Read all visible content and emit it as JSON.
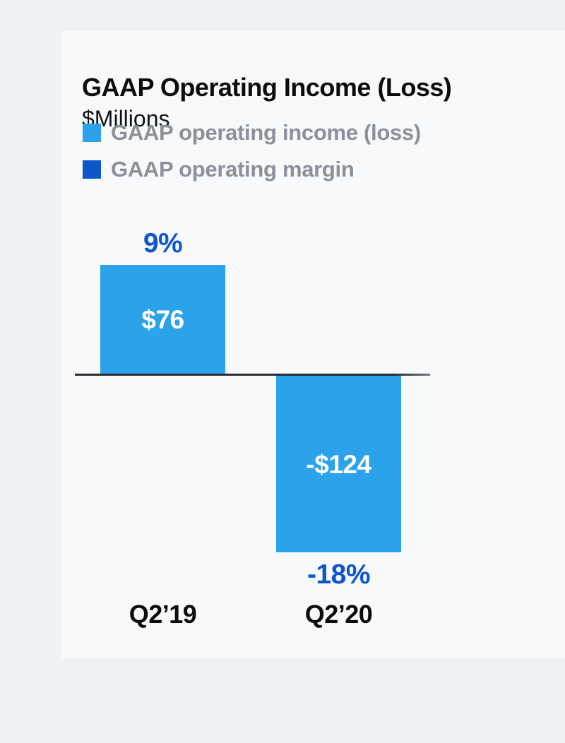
{
  "page": {
    "background_color": "#edf2f7",
    "card_color": "#f7f9fa"
  },
  "chart_data": {
    "type": "bar",
    "title": "GAAP Operating Income (Loss)",
    "subtitle": "$Millions",
    "categories": [
      "Q2’19",
      "Q2’20"
    ],
    "series": [
      {
        "name": "GAAP operating income (loss)",
        "unit": "$M",
        "values": [
          76,
          -124
        ],
        "labels": [
          "$76",
          "-$124"
        ],
        "color": "#2ba2e9"
      },
      {
        "name": "GAAP operating margin",
        "unit": "%",
        "values": [
          9,
          -18
        ],
        "labels": [
          "9%",
          "-18%"
        ],
        "color": "#0e56cb"
      }
    ],
    "baseline": 0,
    "ylim": [
      -124,
      76
    ],
    "grid": false,
    "legend_position": "top-left",
    "axis_color": "#2a2c2f",
    "bar_value_text_color": "#ffffff",
    "category_text_color": "#0b0c0e",
    "legend_text_color": "#8a919b"
  }
}
